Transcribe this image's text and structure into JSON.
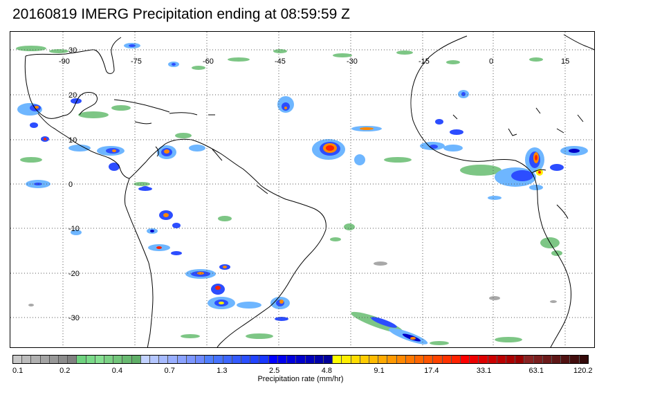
{
  "title": "20160819 IMERG Precipitation ending at 08:59:59 Z",
  "map": {
    "lon_labels": [
      "-90",
      "-75",
      "-60",
      "-45",
      "-30",
      "-15",
      "0",
      "15"
    ],
    "lat_labels": [
      "30",
      "20",
      "10",
      "0",
      "-10",
      "-20",
      "-30"
    ],
    "gridline_style": "dotted"
  },
  "colorbar": {
    "label": "Precipitation rate (mm/hr)",
    "tick_labels": [
      "0.1",
      "0.2",
      "0.4",
      "0.7",
      "1.3",
      "2.5",
      "4.8",
      "9.1",
      "17.4",
      "33.1",
      "63.1",
      "120.2"
    ],
    "colors": [
      "#c8c8c8",
      "#bcbcbc",
      "#b0b0b0",
      "#a4a4a4",
      "#989898",
      "#8c8c8c",
      "#808080",
      "#6fd27f",
      "#7ada88",
      "#86e091",
      "#7cd285",
      "#73c67b",
      "#69ba71",
      "#5fae67",
      "#c2d2ff",
      "#b4c6ff",
      "#a6baff",
      "#98aeff",
      "#8aa2ff",
      "#7c96ff",
      "#6e8aff",
      "#4f7fff",
      "#4673ff",
      "#3d67ff",
      "#345bff",
      "#2b4fff",
      "#2243ff",
      "#1937ff",
      "#0000ff",
      "#0000ee",
      "#0000dd",
      "#0000cc",
      "#0000bb",
      "#0000aa",
      "#000099",
      "#ffff00",
      "#ffee00",
      "#ffdd00",
      "#ffcc00",
      "#ffbb00",
      "#ffaa00",
      "#ff9900",
      "#ff8800",
      "#ff7700",
      "#ff6600",
      "#ff5500",
      "#ff4400",
      "#ff3300",
      "#ff2200",
      "#ff0000",
      "#ee0000",
      "#dd0000",
      "#cc0000",
      "#bb0000",
      "#aa0000",
      "#990000",
      "#882222",
      "#7a1e1e",
      "#6c1a1a",
      "#5e1616",
      "#501212",
      "#420e0e",
      "#340a0a"
    ]
  },
  "precip_colors": {
    "gray": "#a8a8a8",
    "green": "#7dc685",
    "light_blue": "#6eb6ff",
    "blue": "#2c4dff",
    "deep_blue": "#0000c8",
    "yellow": "#ffee00",
    "orange": "#ff8800",
    "red": "#ff2200",
    "dark_red": "#990000"
  }
}
